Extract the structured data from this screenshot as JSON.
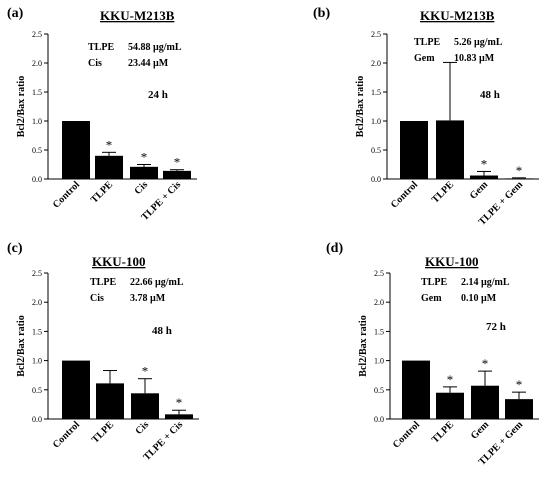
{
  "chart_data": [
    {
      "type": "bar",
      "panel_label": "(a)",
      "title": "KKU-M213B",
      "annotations": [
        {
          "label": "TLPE",
          "value": "54.88 µg/mL"
        },
        {
          "label": "Cis",
          "value": "23.44 µM"
        }
      ],
      "time": "24 h",
      "ylabel": "Bcl2/Bax ratio",
      "ylim": [
        0,
        2.5
      ],
      "yticks": [
        "0.0",
        "0.5",
        "1.0",
        "1.5",
        "2.0",
        "2.5"
      ],
      "categories": [
        "Control",
        "TLPE",
        "Cis",
        "TLPE + Cis"
      ],
      "values": [
        1.0,
        0.4,
        0.21,
        0.14
      ],
      "errors": [
        0,
        0.06,
        0.04,
        0.02
      ],
      "significance": [
        "",
        "*",
        "*",
        "*"
      ]
    },
    {
      "type": "bar",
      "panel_label": "(b)",
      "title": "KKU-M213B",
      "annotations": [
        {
          "label": "TLPE",
          "value": "5.26 µg/mL"
        },
        {
          "label": "Gem",
          "value": "10.83 µM"
        }
      ],
      "time": "48 h",
      "ylabel": "Bcl2/Bax ratio",
      "ylim": [
        0,
        2.5
      ],
      "yticks": [
        "0.0",
        "0.5",
        "1.0",
        "1.5",
        "2.0",
        "2.5"
      ],
      "categories": [
        "Control",
        "TLPE",
        "Gem",
        "TLPE + Gem"
      ],
      "values": [
        1.0,
        1.01,
        0.06,
        0.01
      ],
      "errors": [
        0,
        1.0,
        0.07,
        0.01
      ],
      "significance": [
        "",
        "",
        "*",
        "*"
      ]
    },
    {
      "type": "bar",
      "panel_label": "(c)",
      "title": "KKU-100",
      "annotations": [
        {
          "label": "TLPE",
          "value": "22.66 µg/mL"
        },
        {
          "label": "Cis",
          "value": "3.78 µM"
        }
      ],
      "time": "48 h",
      "ylabel": "Bcl2/Bax ratio",
      "ylim": [
        0,
        2.5
      ],
      "yticks": [
        "0.0",
        "0.5",
        "1.0",
        "1.5",
        "2.0",
        "2.5"
      ],
      "categories": [
        "Control",
        "TLPE",
        "Cis",
        "TLPE + Cis"
      ],
      "values": [
        1.0,
        0.61,
        0.44,
        0.08
      ],
      "errors": [
        0,
        0.22,
        0.25,
        0.07
      ],
      "significance": [
        "",
        "",
        "*",
        "*"
      ]
    },
    {
      "type": "bar",
      "panel_label": "(d)",
      "title": "KKU-100",
      "annotations": [
        {
          "label": "TLPE",
          "value": "2.14 µg/mL"
        },
        {
          "label": "Gem",
          "value": "0.10 µM"
        }
      ],
      "time": "72 h",
      "ylabel": "Bcl2/Bax ratio",
      "ylim": [
        0,
        2.5
      ],
      "yticks": [
        "0.0",
        "0.5",
        "1.0",
        "1.5",
        "2.0",
        "2.5"
      ],
      "categories": [
        "Control",
        "TLPE",
        "Gem",
        "TLPE + Gem"
      ],
      "values": [
        1.0,
        0.45,
        0.57,
        0.34
      ],
      "errors": [
        0,
        0.1,
        0.25,
        0.12
      ],
      "significance": [
        "",
        "*",
        "*",
        "*"
      ]
    }
  ]
}
